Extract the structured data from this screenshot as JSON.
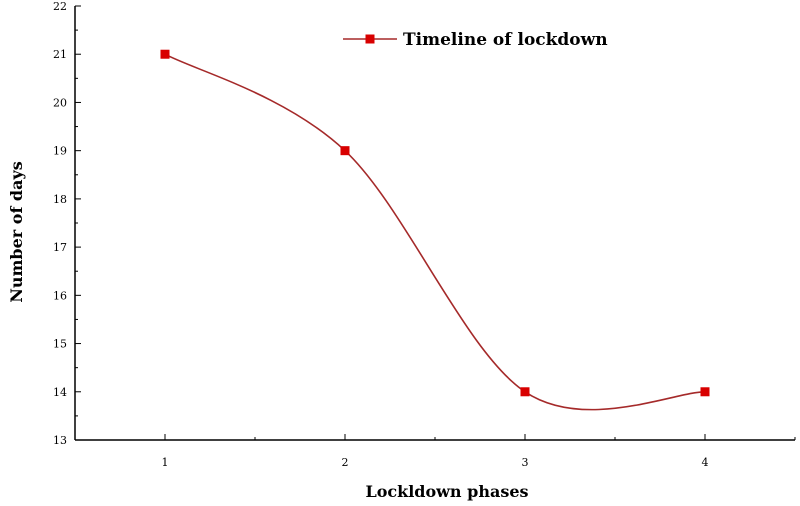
{
  "chart_data": {
    "type": "line",
    "title": "",
    "xlabel": "Lockldown phases",
    "ylabel": "Number of days",
    "x": [
      1,
      2,
      3,
      4
    ],
    "xticks": [
      "1",
      "2",
      "3",
      "4"
    ],
    "xlim": [
      0.5,
      4.5
    ],
    "ylim": [
      13,
      22
    ],
    "yticks": [
      "13",
      "14",
      "15",
      "16",
      "17",
      "18",
      "19",
      "20",
      "21",
      "22"
    ],
    "grid": false,
    "legend_position": "top-right",
    "series": [
      {
        "name": "Timeline of lockdown",
        "values": [
          21,
          19,
          14,
          14
        ],
        "color": "#a52a2a",
        "marker_color": "#d80000",
        "smooth": true
      }
    ]
  }
}
